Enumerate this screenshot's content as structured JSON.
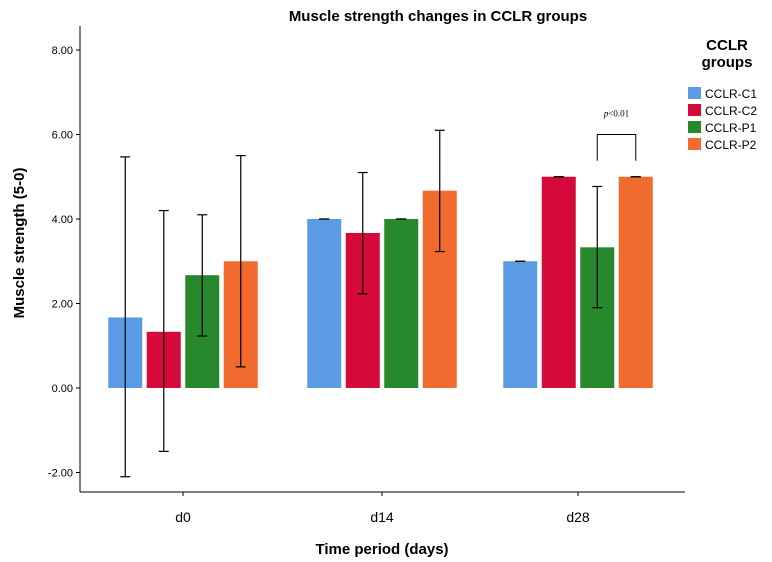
{
  "chart_data": {
    "type": "bar",
    "title": "Muscle strength changes in CCLR groups",
    "xlabel": "Time period (days)",
    "ylabel": "Muscle strength (5-0)",
    "ylim": [
      -2.4,
      8.6
    ],
    "yticks": [
      -2,
      0,
      2,
      4,
      6,
      8
    ],
    "ytick_labels": [
      "-2.00",
      "0.00",
      "2.00",
      "4.00",
      "6.00",
      "8.00"
    ],
    "categories": [
      "d0",
      "d14",
      "d28"
    ],
    "legend": {
      "title_lines": [
        "CCLR",
        "groups"
      ],
      "position": "right"
    },
    "series": [
      {
        "name": "CCLR-C1",
        "color": "#5b9be3",
        "values": [
          1.67,
          4.0,
          3.0
        ],
        "err_low": [
          -2.1,
          4.0,
          3.0
        ],
        "err_high": [
          5.47,
          4.0,
          3.0
        ]
      },
      {
        "name": "CCLR-C2",
        "color": "#d6093b",
        "values": [
          1.33,
          3.67,
          5.0
        ],
        "err_low": [
          -1.5,
          2.23,
          5.0
        ],
        "err_high": [
          4.2,
          5.1,
          5.0
        ]
      },
      {
        "name": "CCLR-P1",
        "color": "#27892b",
        "values": [
          2.67,
          4.0,
          3.33
        ],
        "err_low": [
          1.23,
          4.0,
          1.9
        ],
        "err_high": [
          4.1,
          4.0,
          4.77
        ]
      },
      {
        "name": "CCLR-P2",
        "color": "#f26b2e",
        "values": [
          3.0,
          4.67,
          5.0
        ],
        "err_low": [
          0.5,
          3.23,
          5.0
        ],
        "err_high": [
          5.5,
          6.1,
          5.0
        ]
      }
    ],
    "annotations": [
      {
        "category": "d28",
        "series_from": "CCLR-P1",
        "series_to": "CCLR-P2",
        "y_value": 6.0,
        "text_italic": "p",
        "text_rest": "<0.01"
      }
    ]
  }
}
